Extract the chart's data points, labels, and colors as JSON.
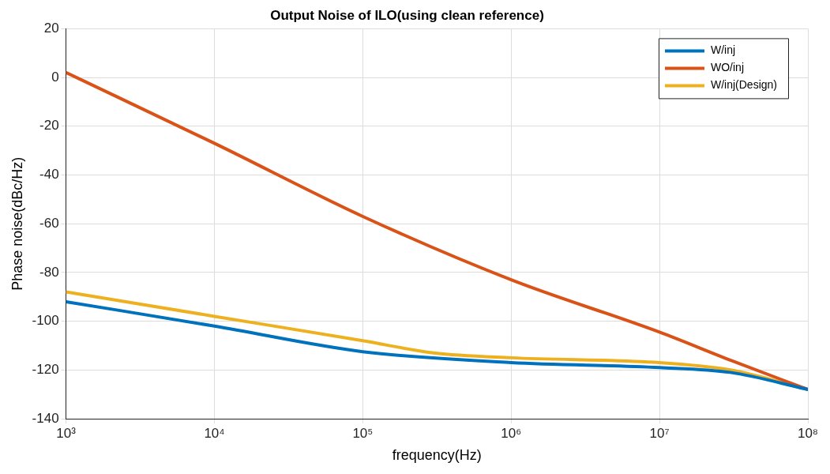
{
  "chart_data": {
    "type": "line",
    "title": "Output Noise of ILO(using clean reference)",
    "xlabel": "frequency(Hz)",
    "ylabel": "Phase noise(dBc/Hz)",
    "log": "x",
    "grid": true,
    "legend": "top right",
    "marker": "none",
    "line_style": "solid",
    "xlim": [
      1000,
      100000000
    ],
    "xticks": [
      {
        "value": 1000,
        "label": "10³"
      },
      {
        "value": 10000,
        "label": "10⁴"
      },
      {
        "value": 100000,
        "label": "10⁵"
      },
      {
        "value": 1000000,
        "label": "10⁶"
      },
      {
        "value": 10000000,
        "label": "10⁷"
      },
      {
        "value": 100000000,
        "label": "10⁸"
      }
    ],
    "ylim": [
      -140,
      20
    ],
    "yticks": [
      -140,
      -120,
      -100,
      -80,
      -60,
      -40,
      -20,
      0,
      20
    ],
    "series": [
      {
        "name": "W/inj",
        "color": "#0072bd",
        "x": [
          1000,
          10000,
          100000,
          1000000,
          10000000,
          30000000,
          100000000
        ],
        "values": [
          -92,
          -102,
          -112.5,
          -117,
          -119,
          -121,
          -128
        ]
      },
      {
        "name": "WO/inj",
        "color": "#d95319",
        "x": [
          1000,
          10000,
          100000,
          1000000,
          10000000,
          30000000,
          100000000
        ],
        "values": [
          2,
          -27,
          -57,
          -83,
          -104.5,
          -116,
          -128
        ]
      },
      {
        "name": "W/inj(Design)",
        "color": "#edb120",
        "x": [
          1000,
          10000,
          100000,
          300000,
          1000000,
          10000000,
          30000000,
          100000000
        ],
        "values": [
          -88,
          -98,
          -108,
          -113,
          -115,
          -117,
          -120,
          -128
        ]
      }
    ]
  }
}
